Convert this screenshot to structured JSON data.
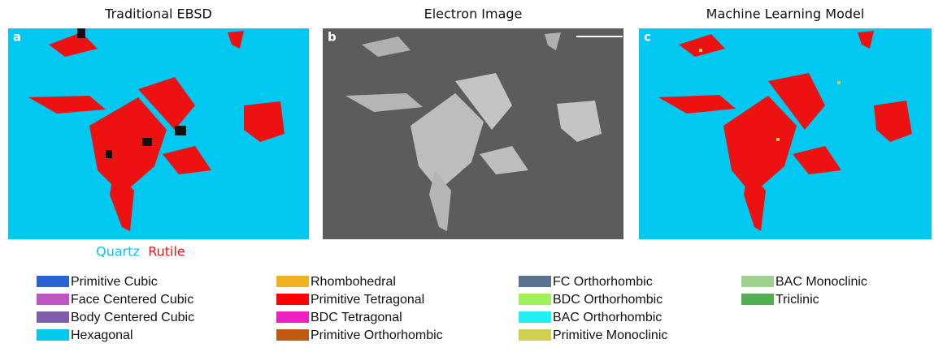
{
  "panels": [
    {
      "letter": "a",
      "title": "Traditional EBSD"
    },
    {
      "letter": "b",
      "title": "Electron Image"
    },
    {
      "letter": "c",
      "title": "Machine Learning Model"
    }
  ],
  "phases": [
    {
      "label": "Quartz",
      "color": "#00c8f0"
    },
    {
      "label": "Rutile",
      "color": "#ee1111"
    }
  ],
  "legend": [
    {
      "label": "Primitive Cubic",
      "color": "#2a63d6"
    },
    {
      "label": "Face Centered Cubic",
      "color": "#c054c8"
    },
    {
      "label": "Body Centered Cubic",
      "color": "#7c5fa8"
    },
    {
      "label": "Hexagonal",
      "color": "#00c8ee"
    },
    {
      "label": "Rhombohedral",
      "color": "#f0b020"
    },
    {
      "label": "Primitive Tetragonal",
      "color": "#ff0000"
    },
    {
      "label": "BDC Tetragonal",
      "color": "#f020c0"
    },
    {
      "label": "Primitive Orthorhombic",
      "color": "#c05a10"
    },
    {
      "label": "FC Orthorhombic",
      "color": "#5a7390"
    },
    {
      "label": "BDC Orthorhombic",
      "color": "#a0f060"
    },
    {
      "label": "BAC Orthorhombic",
      "color": "#20f0f0"
    },
    {
      "label": "Primitive Monoclinic",
      "color": "#d0d050"
    },
    {
      "label": "BAC Monoclinic",
      "color": "#a0d090"
    },
    {
      "label": "Triclinic",
      "color": "#50b050"
    }
  ]
}
